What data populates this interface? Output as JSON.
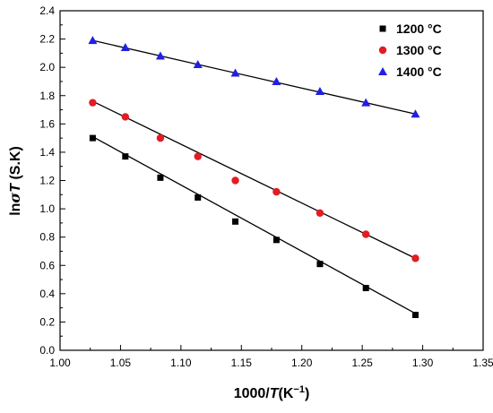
{
  "chart_data": {
    "type": "scatter",
    "xlabel_prefix": "1000/",
    "xlabel_italic": "T",
    "xlabel_suffix": "(K",
    "xlabel_sup": "−1",
    "xlabel_close": ")",
    "ylabel_prefix": "ln",
    "ylabel_sigma": "σ",
    "ylabel_italic": "T",
    "ylabel_suffix": " (S.K)",
    "xlim": [
      1.0,
      1.35
    ],
    "ylim": [
      0.0,
      2.4
    ],
    "x_ticks": [
      "1.00",
      "1.05",
      "1.10",
      "1.15",
      "1.20",
      "1.25",
      "1.30",
      "1.35"
    ],
    "y_ticks": [
      "0.0",
      "0.2",
      "0.4",
      "0.6",
      "0.8",
      "1.0",
      "1.2",
      "1.4",
      "1.6",
      "1.8",
      "2.0",
      "2.2",
      "2.4"
    ],
    "legend_position": "top-right",
    "grid": false,
    "series": [
      {
        "name": "1200 °C",
        "marker": "square",
        "color": "#000000",
        "x": [
          1.027,
          1.054,
          1.083,
          1.114,
          1.145,
          1.179,
          1.215,
          1.253,
          1.294
        ],
        "y": [
          1.5,
          1.37,
          1.22,
          1.08,
          0.91,
          0.78,
          0.61,
          0.44,
          0.25
        ],
        "fit": {
          "x": [
            1.027,
            1.294
          ],
          "y": [
            1.51,
            0.26
          ]
        }
      },
      {
        "name": "1300 °C",
        "marker": "circle",
        "color": "#e31b23",
        "x": [
          1.027,
          1.054,
          1.083,
          1.114,
          1.145,
          1.179,
          1.215,
          1.253,
          1.294
        ],
        "y": [
          1.75,
          1.65,
          1.5,
          1.37,
          1.2,
          1.12,
          0.97,
          0.82,
          0.65
        ],
        "fit": {
          "x": [
            1.027,
            1.294
          ],
          "y": [
            1.76,
            0.65
          ]
        }
      },
      {
        "name": "1400 °C",
        "marker": "triangle",
        "color": "#1f1fe6",
        "x": [
          1.027,
          1.054,
          1.083,
          1.114,
          1.145,
          1.179,
          1.215,
          1.253,
          1.294
        ],
        "y": [
          2.19,
          2.14,
          2.08,
          2.02,
          1.96,
          1.9,
          1.83,
          1.75,
          1.67
        ],
        "fit": {
          "x": [
            1.027,
            1.294
          ],
          "y": [
            2.19,
            1.67
          ]
        }
      }
    ]
  }
}
